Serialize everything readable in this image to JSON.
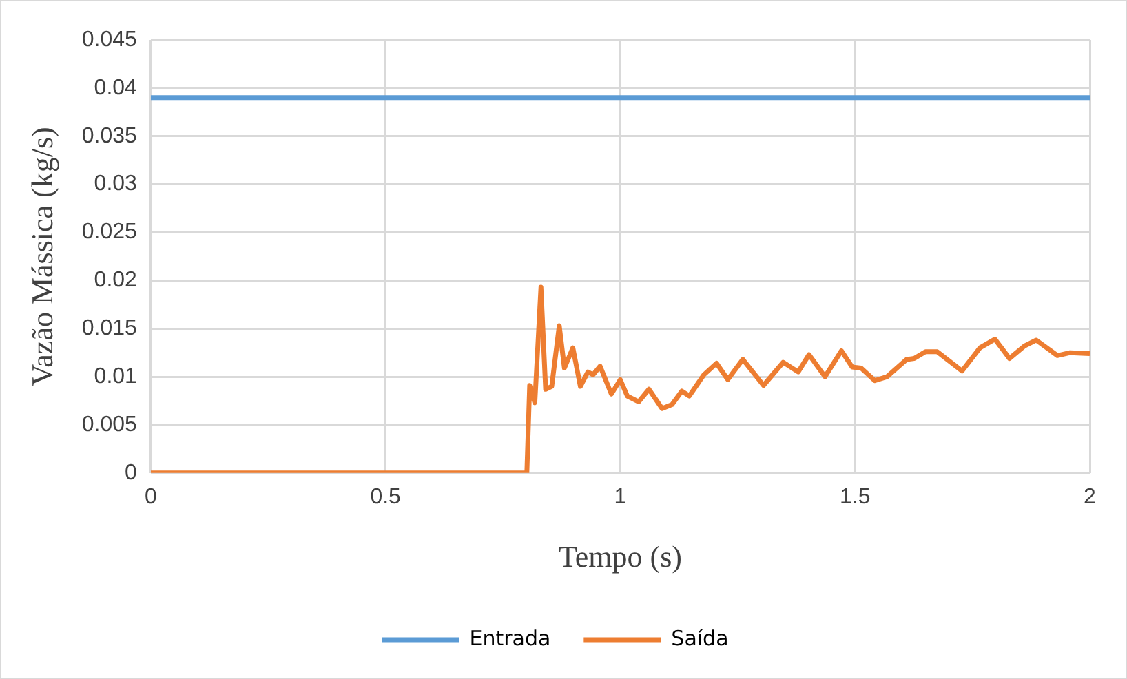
{
  "chart_data": {
    "type": "line",
    "xlabel": "Tempo (s)",
    "ylabel": "Vazão Mássica (kg/s)",
    "xlim": [
      0,
      2
    ],
    "xticks": [
      0,
      0.5,
      1,
      1.5,
      2
    ],
    "ylim": [
      0,
      0.045
    ],
    "yticks": [
      0,
      0.005,
      0.01,
      0.015,
      0.02,
      0.025,
      0.03,
      0.035,
      0.04,
      0.045
    ],
    "grid": true,
    "legend": "bottom",
    "marker": "none",
    "series": [
      {
        "name": "Entrada",
        "color": "#5b9bd5",
        "x": [
          0,
          2
        ],
        "values": [
          0.039,
          0.039
        ]
      },
      {
        "name": "Saída",
        "color": "#ed7d31",
        "x": [
          0,
          0.801,
          0.807,
          0.818,
          0.831,
          0.841,
          0.854,
          0.87,
          0.881,
          0.899,
          0.915,
          0.931,
          0.942,
          0.957,
          0.981,
          1.0,
          1.015,
          1.039,
          1.061,
          1.089,
          1.11,
          1.131,
          1.147,
          1.178,
          1.205,
          1.229,
          1.261,
          1.305,
          1.347,
          1.379,
          1.402,
          1.436,
          1.471,
          1.494,
          1.513,
          1.542,
          1.568,
          1.61,
          1.626,
          1.65,
          1.675,
          1.728,
          1.766,
          1.798,
          1.829,
          1.861,
          1.886,
          1.931,
          1.958,
          2.0
        ],
        "values": [
          0,
          0,
          0.0091,
          0.0073,
          0.0193,
          0.0087,
          0.009,
          0.0153,
          0.0109,
          0.013,
          0.009,
          0.0105,
          0.0102,
          0.0111,
          0.0082,
          0.0097,
          0.008,
          0.0074,
          0.0087,
          0.0067,
          0.0071,
          0.0085,
          0.008,
          0.0102,
          0.0114,
          0.0097,
          0.0118,
          0.0091,
          0.0115,
          0.0105,
          0.0123,
          0.01,
          0.0127,
          0.011,
          0.0109,
          0.0096,
          0.01,
          0.0118,
          0.0119,
          0.0126,
          0.0126,
          0.0106,
          0.013,
          0.0139,
          0.0119,
          0.0132,
          0.0138,
          0.0122,
          0.0125,
          0.0124
        ]
      }
    ]
  }
}
